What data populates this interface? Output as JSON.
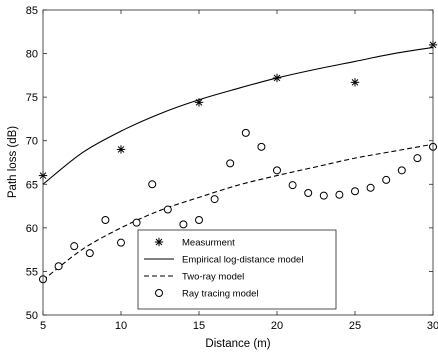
{
  "chart_data": {
    "type": "line",
    "title": "",
    "xlabel": "Distance (m)",
    "ylabel": "Path loss (dB)",
    "xlim": [
      5,
      30
    ],
    "ylim": [
      50,
      85
    ],
    "x_ticks": [
      5,
      10,
      15,
      20,
      25,
      30
    ],
    "y_ticks": [
      50,
      55,
      60,
      65,
      70,
      75,
      80,
      85
    ],
    "grid": false,
    "legend_position": "bottom-center",
    "series": [
      {
        "name": "Measurment",
        "style": "markers",
        "marker": "star",
        "x": [
          5,
          10,
          15,
          20,
          25,
          30
        ],
        "y": [
          66.0,
          69.0,
          74.4,
          77.2,
          76.7,
          81.0
        ]
      },
      {
        "name": "Empirical log-distance model",
        "style": "solid",
        "function": "log-distance",
        "x": [
          5,
          7.5,
          10,
          12.5,
          15,
          17.5,
          20,
          22.5,
          25,
          27.5,
          30
        ],
        "y": [
          65.0,
          68.6,
          71.1,
          73.1,
          74.7,
          76.0,
          77.2,
          78.2,
          79.1,
          80.0,
          80.7
        ]
      },
      {
        "name": "Two-ray model",
        "style": "dashed",
        "function": "two-ray",
        "x": [
          5,
          7.5,
          10,
          12.5,
          15,
          17.5,
          20,
          22.5,
          25,
          27.5,
          30
        ],
        "y": [
          54.0,
          57.5,
          60.0,
          62.0,
          63.5,
          64.9,
          66.0,
          67.0,
          68.0,
          68.8,
          69.6
        ]
      },
      {
        "name": "Ray tracing model",
        "style": "markers",
        "marker": "circle",
        "x": [
          5,
          6,
          7,
          8,
          9,
          10,
          11,
          12,
          13,
          14,
          15,
          16,
          17,
          18,
          19,
          20,
          21,
          22,
          23,
          24,
          25,
          26,
          27,
          28,
          29,
          30
        ],
        "y": [
          54.1,
          55.6,
          57.9,
          57.1,
          60.9,
          58.3,
          60.6,
          65.0,
          62.1,
          60.4,
          60.9,
          63.3,
          67.4,
          70.9,
          69.3,
          66.6,
          64.9,
          64.0,
          63.7,
          63.8,
          64.2,
          64.6,
          65.5,
          66.6,
          68.0,
          69.3
        ]
      }
    ]
  }
}
